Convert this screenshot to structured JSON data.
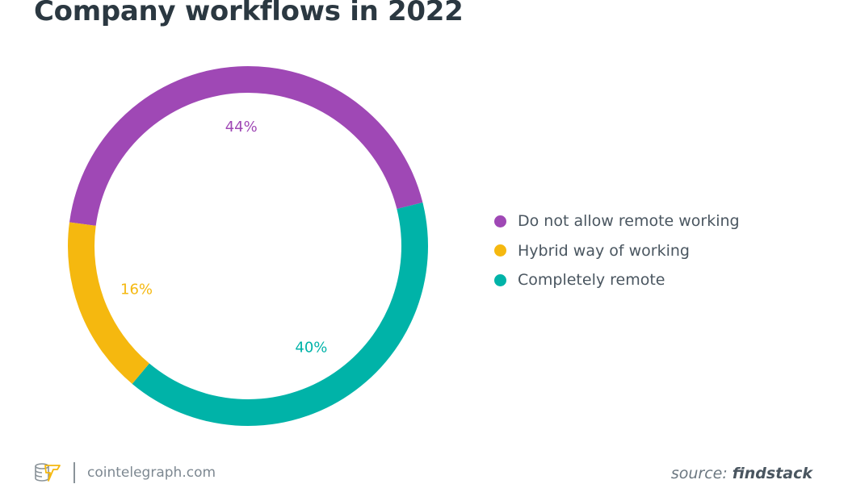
{
  "chart_data": {
    "type": "pie",
    "variant": "donut",
    "title": "Company workflows in 2022",
    "categories": [
      "Do not allow remote working",
      "Hybrid way of working",
      "Completely remote"
    ],
    "values": [
      44,
      16,
      40
    ],
    "labels": [
      "44%",
      "16%",
      "40%"
    ],
    "colors": [
      "#9f48b5",
      "#f5b80f",
      "#00b3a8"
    ],
    "legend_position": "right"
  },
  "footer": {
    "site": "cointelegraph.com",
    "source_prefix": "source:",
    "source_name": "findstack"
  }
}
